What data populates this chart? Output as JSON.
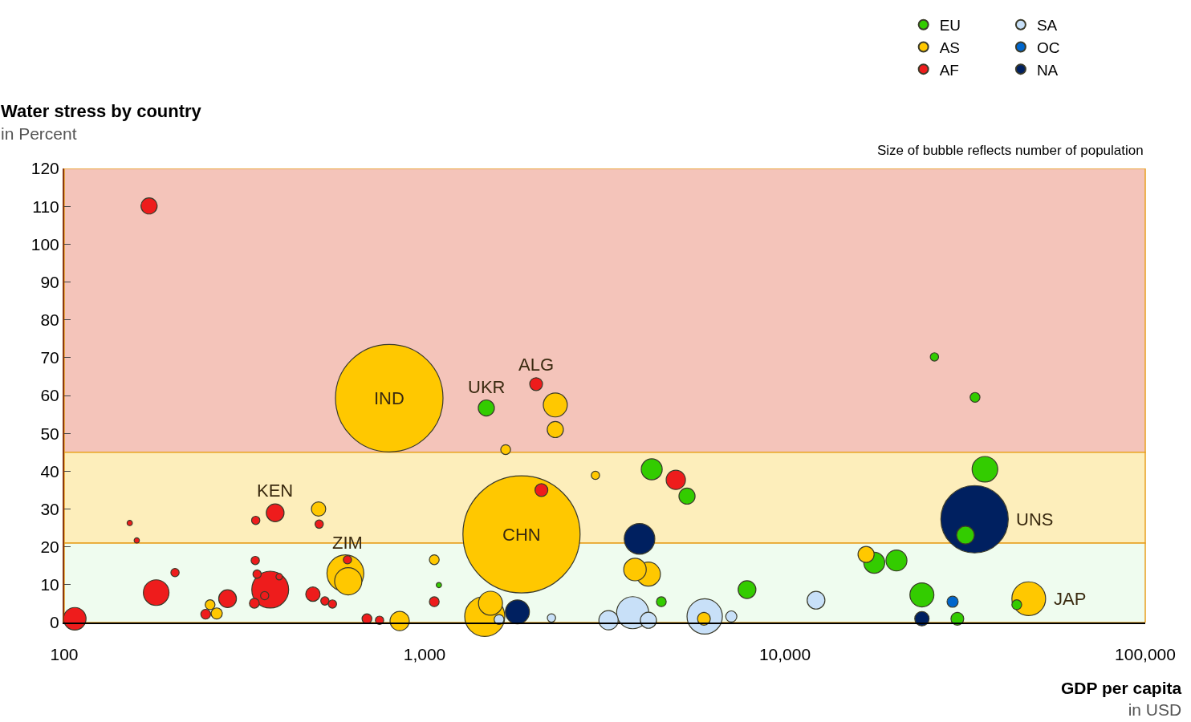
{
  "chart_data": {
    "type": "bubble",
    "title": "Water stress by country",
    "subtitle": "in Percent",
    "xlabel": "GDP per capita\nin USD",
    "log": "x",
    "xlim": [
      100,
      100000
    ],
    "xticks": [
      {
        "value": 100,
        "label": "100"
      },
      {
        "value": 1000,
        "label": "1,000"
      },
      {
        "value": 10000,
        "label": "10,000"
      },
      {
        "value": 100000,
        "label": "100,000"
      }
    ],
    "ylim": [
      0,
      120
    ],
    "yticks": [
      0,
      10,
      20,
      30,
      40,
      50,
      60,
      70,
      80,
      90,
      100,
      110,
      120
    ],
    "grid": false,
    "legend": "top right",
    "marker": "circle",
    "bands": [
      {
        "axis": "y",
        "from": 45,
        "to": 120,
        "color": "#f4c4ba"
      },
      {
        "axis": "y",
        "from": 21,
        "to": 45,
        "color": "#fdeebb"
      },
      {
        "axis": "y",
        "from": 0,
        "to": 21,
        "color": "#effcef"
      }
    ],
    "series": [
      {
        "name": "EU",
        "color": "#33cc00",
        "x": [
          1484,
          26000,
          33700,
          4270,
          5350,
          35900,
          31700,
          17700,
          20400,
          7850,
          24000,
          44000,
          30100,
          4540,
          1096
        ],
        "values": [
          56.7,
          70.2,
          59.5,
          40.5,
          33.4,
          40.5,
          23.1,
          15.8,
          16.4,
          8.7,
          7.3,
          4.7,
          1,
          5.5,
          9.9
        ],
        "sizes": [
          0.019,
          0.005,
          0.007,
          0.032,
          0.019,
          0.048,
          0.023,
          0.032,
          0.032,
          0.023,
          0.042,
          0.007,
          0.012,
          0.007,
          0.002
        ]
      },
      {
        "name": "AS",
        "color": "#ffc800",
        "x": [
          798,
          1858,
          2306,
          2306,
          1679,
          2980,
          508,
          603,
          614,
          1064,
          254,
          265,
          853,
          1524,
          1469,
          3837,
          4180,
          16800,
          47500,
          5960
        ],
        "values": [
          59.3,
          23.3,
          57.5,
          51,
          45.7,
          38.9,
          30,
          13,
          10.9,
          16.6,
          4.7,
          2.4,
          0.4,
          5.1,
          1.6,
          14,
          12.8,
          18,
          6.3,
          1
        ],
        "sizes": [
          0.842,
          1,
          0.042,
          0.019,
          0.007,
          0.005,
          0.015,
          0.099,
          0.054,
          0.007,
          0.007,
          0.009,
          0.027,
          0.042,
          0.117,
          0.037,
          0.042,
          0.019,
          0.083,
          0.012
        ]
      },
      {
        "name": "AF",
        "color": "#ee1c1c",
        "x": [
          172,
          2040,
          385,
          340,
          510,
          152,
          159,
          2110,
          4980,
          180,
          203,
          284,
          339,
          343,
          373,
          360,
          395,
          337,
          490,
          529,
          555,
          247,
          107,
          611,
          1064,
          692,
          750
        ],
        "values": [
          110.1,
          63,
          29,
          27,
          26,
          26.3,
          21.7,
          35,
          37.7,
          7.9,
          13.2,
          6.3,
          16.4,
          12.8,
          8.7,
          7.1,
          12.1,
          5.1,
          7.5,
          5.7,
          4.9,
          2.2,
          1,
          16.6,
          5.5,
          1,
          0.6
        ],
        "sizes": [
          0.019,
          0.012,
          0.023,
          0.005,
          0.005,
          0.002,
          0.002,
          0.012,
          0.027,
          0.048,
          0.005,
          0.023,
          0.005,
          0.005,
          0.099,
          0.005,
          0.003,
          0.007,
          0.015,
          0.005,
          0.005,
          0.007,
          0.037,
          0.005,
          0.007,
          0.007,
          0.005
        ]
      },
      {
        "name": "SA",
        "color": "#c8e0f8",
        "x": [
          5990,
          3780,
          3240,
          4180,
          12200,
          7100,
          2250,
          1610
        ],
        "values": [
          1.6,
          2.6,
          0.6,
          0.6,
          5.9,
          1.6,
          1.2,
          0.8
        ],
        "sizes": [
          0.091,
          0.075,
          0.027,
          0.019,
          0.023,
          0.009,
          0.005,
          0.007
        ]
      },
      {
        "name": "OC",
        "color": "#0066cc",
        "x": [
          29200
        ],
        "values": [
          5.5
        ],
        "sizes": [
          0.009
        ]
      },
      {
        "name": "NA",
        "color": "#002060",
        "x": [
          33600,
          3950,
          1810,
          24000
        ],
        "values": [
          27.3,
          22.1,
          2.8,
          1
        ],
        "sizes": [
          0.331,
          0.068,
          0.042,
          0.015
        ]
      }
    ],
    "annotations": [
      {
        "text": "IND",
        "x": 798,
        "y": 59.3
      },
      {
        "text": "UKR",
        "x": 1484,
        "y": 56.7
      },
      {
        "text": "ALG",
        "x": 2040,
        "y": 63
      },
      {
        "text": "KEN",
        "x": 385,
        "y": 29
      },
      {
        "text": "ZIM",
        "x": 611,
        "y": 16.6
      },
      {
        "text": "CHN",
        "x": 1858,
        "y": 23.3
      },
      {
        "text": "UNS",
        "x": 33600,
        "y": 27.3
      },
      {
        "text": "JAP",
        "x": 47500,
        "y": 6.3
      },
      "Size of bubble reflects number of population"
    ]
  }
}
